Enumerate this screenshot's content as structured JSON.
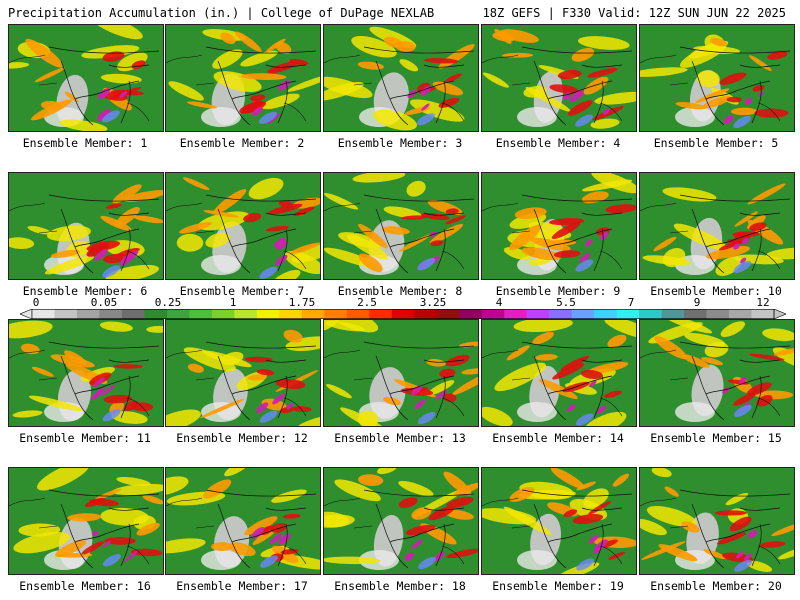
{
  "header": {
    "title_left": "Precipitation Accumulation (in.) | College of DuPage NEXLAB",
    "title_right": "18Z GEFS | F330 Valid: 12Z SUN JUN 22 2025"
  },
  "panels": [
    {
      "label": "Ensemble Member: 1"
    },
    {
      "label": "Ensemble Member: 2"
    },
    {
      "label": "Ensemble Member: 3"
    },
    {
      "label": "Ensemble Member: 4"
    },
    {
      "label": "Ensemble Member: 5"
    },
    {
      "label": "Ensemble Member: 6"
    },
    {
      "label": "Ensemble Member: 7"
    },
    {
      "label": "Ensemble Member: 8"
    },
    {
      "label": "Ensemble Member: 9"
    },
    {
      "label": "Ensemble Member: 10"
    },
    {
      "label": "Ensemble Member: 11"
    },
    {
      "label": "Ensemble Member: 12"
    },
    {
      "label": "Ensemble Member: 13"
    },
    {
      "label": "Ensemble Member: 14"
    },
    {
      "label": "Ensemble Member: 15"
    },
    {
      "label": "Ensemble Member: 16"
    },
    {
      "label": "Ensemble Member: 17"
    },
    {
      "label": "Ensemble Member: 18"
    },
    {
      "label": "Ensemble Member: 19"
    },
    {
      "label": "Ensemble Member: 20"
    }
  ],
  "colorbar": {
    "tick_labels": [
      "0",
      "0.05",
      "0.25",
      "1",
      "1.75",
      "2.5",
      "3.25",
      "4",
      "5.5",
      "7",
      "9",
      "12"
    ],
    "colors": [
      "#e6e6e6",
      "#c4c4c4",
      "#a4a4a4",
      "#888888",
      "#6e6e6e",
      "#2e8b2e",
      "#3ea43e",
      "#4cbf3c",
      "#7ad12e",
      "#b8e62a",
      "#f2f200",
      "#ffd400",
      "#ffaa00",
      "#ff8000",
      "#ff5a00",
      "#ff2a00",
      "#e00000",
      "#b80000",
      "#901010",
      "#900060",
      "#c00090",
      "#e020c0",
      "#c040ff",
      "#8a70ff",
      "#6aa0ff",
      "#40d0ff",
      "#30f0f0",
      "#30c8c8",
      "#509898",
      "#707070",
      "#8c8c8c",
      "#a8a8a8",
      "#c4c4c4"
    ]
  },
  "map_colors": {
    "land_green": "#2f8f2f",
    "dry_gray": "#c8c8c8",
    "yellow": "#f2e600",
    "orange": "#ff9a00",
    "red": "#e01010",
    "magenta": "#d020b0",
    "blue": "#6a88ff",
    "ocean_border": "#111111"
  }
}
